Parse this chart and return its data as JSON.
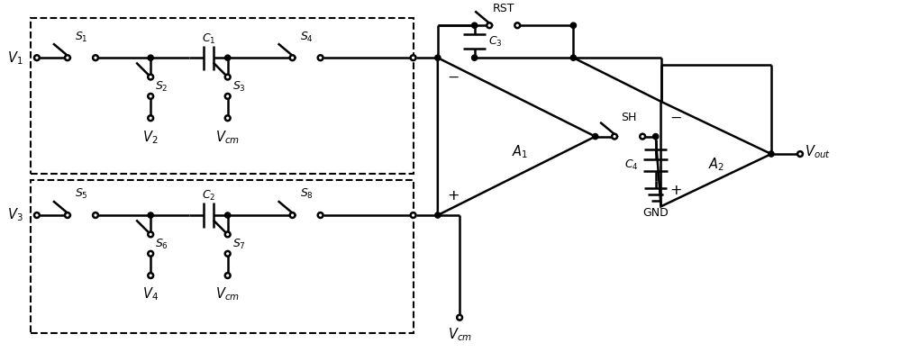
{
  "figsize": [
    10.0,
    3.91
  ],
  "dpi": 100,
  "lw": 1.8,
  "dot_r": 0.032,
  "open_r": 0.03,
  "font_size": 10.5,
  "xlim": [
    0,
    10
  ],
  "ylim": [
    0,
    3.91
  ]
}
